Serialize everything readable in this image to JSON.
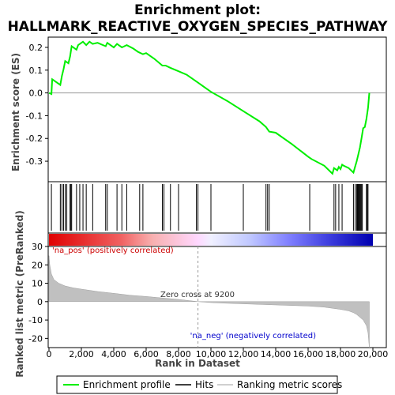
{
  "chart_data": {
    "type": "line",
    "title_line1": "Enrichment plot:",
    "title_line2": "HALLMARK_REACTIVE_OXYGEN_SPECIES_PATHWAY",
    "top_panel": {
      "ylabel": "Enrichment score (ES)",
      "ylim": [
        -0.39,
        0.245
      ],
      "yticks": [
        0.2,
        0.1,
        0.0,
        -0.1,
        -0.2,
        -0.3
      ],
      "ytick_labels": [
        "0.2",
        "0.1",
        "0.0",
        "-0.1",
        "-0.2",
        "-0.3"
      ],
      "series": [
        {
          "name": "Enrichment profile",
          "color": "#00ee00",
          "x": [
            0,
            150,
            200,
            700,
            800,
            900,
            1000,
            1200,
            1300,
            1400,
            1700,
            1800,
            2100,
            2300,
            2500,
            2700,
            3000,
            3500,
            3600,
            4000,
            4200,
            4500,
            4800,
            5200,
            5500,
            5800,
            6000,
            6500,
            7000,
            7200,
            7500,
            8000,
            8500,
            9200,
            10000,
            11000,
            12000,
            13000,
            13400,
            13600,
            14000,
            15000,
            16000,
            16200,
            17000,
            17500,
            17600,
            17800,
            17900,
            18000,
            18100,
            18200,
            18500,
            18800,
            18900,
            19000,
            19100,
            19200,
            19300,
            19400,
            19500,
            19600,
            19700,
            19780
          ],
          "values": [
            0.0,
            -0.005,
            0.06,
            0.035,
            0.075,
            0.105,
            0.14,
            0.13,
            0.16,
            0.205,
            0.19,
            0.21,
            0.225,
            0.21,
            0.225,
            0.215,
            0.22,
            0.205,
            0.22,
            0.2,
            0.215,
            0.2,
            0.21,
            0.195,
            0.18,
            0.17,
            0.175,
            0.15,
            0.12,
            0.12,
            0.11,
            0.095,
            0.08,
            0.045,
            0.005,
            -0.035,
            -0.08,
            -0.125,
            -0.15,
            -0.17,
            -0.175,
            -0.225,
            -0.28,
            -0.29,
            -0.32,
            -0.355,
            -0.33,
            -0.34,
            -0.325,
            -0.335,
            -0.315,
            -0.32,
            -0.33,
            -0.35,
            -0.325,
            -0.3,
            -0.27,
            -0.24,
            -0.2,
            -0.155,
            -0.15,
            -0.115,
            -0.065,
            0.0
          ]
        }
      ]
    },
    "hits": [
      150,
      700,
      800,
      900,
      1000,
      1100,
      1300,
      1350,
      1400,
      1700,
      1900,
      2100,
      2300,
      2700,
      3500,
      3600,
      4200,
      4500,
      4800,
      5600,
      5800,
      7000,
      7100,
      7500,
      8000,
      9100,
      9200,
      10000,
      12000,
      13400,
      13500,
      13600,
      16100,
      17600,
      17700,
      17900,
      18100,
      18800,
      18900,
      19000,
      19050,
      19100,
      19150,
      19200,
      19250,
      19300,
      19350,
      19600,
      19650,
      19700
    ],
    "ranked_panel": {
      "ylabel": "Ranked list metric (PreRanked)",
      "xlabel": "Rank in Dataset",
      "ylim": [
        -25,
        30
      ],
      "yticks": [
        30,
        20,
        10,
        0,
        -10,
        -20
      ],
      "ytick_labels": [
        "30",
        "20",
        "10",
        "0",
        "-10",
        "-20"
      ],
      "xlim": [
        0,
        20000
      ],
      "xticks": [
        0,
        2000,
        4000,
        6000,
        8000,
        10000,
        12000,
        14000,
        16000,
        18000,
        20000
      ],
      "xtick_labels": [
        "0",
        "2,000",
        "4,000",
        "6,000",
        "8,000",
        "10,000",
        "12,000",
        "14,000",
        "16,000",
        "18,000",
        "20,000"
      ],
      "metric_x": [
        0,
        50,
        150,
        300,
        600,
        1000,
        1500,
        2000,
        3000,
        4000,
        5000,
        6000,
        7000,
        8000,
        9200,
        10000,
        11000,
        12000,
        13000,
        14000,
        15000,
        16000,
        17000,
        17500,
        18000,
        18500,
        18800,
        19000,
        19200,
        19400,
        19600,
        19700,
        19780
      ],
      "metric_values": [
        25,
        20,
        15,
        12,
        10,
        8.5,
        7.5,
        6.8,
        5.5,
        4.5,
        3.5,
        2.8,
        2.0,
        1.2,
        0.0,
        -0.5,
        -0.9,
        -1.2,
        -1.5,
        -1.8,
        -2.1,
        -2.4,
        -3.0,
        -3.6,
        -4.2,
        -5.0,
        -6.0,
        -7.0,
        -8.5,
        -10,
        -13,
        -17,
        -25
      ],
      "zero_cross_label": "Zero cross at 9200",
      "zero_cross_rank": 9200,
      "pos_label": "'na_pos' (positively correlated)",
      "neg_label": "'na_neg' (negatively correlated)"
    },
    "legend": {
      "items": [
        {
          "label": "Enrichment profile",
          "color": "#00ee00"
        },
        {
          "label": "Hits",
          "color": "#000000"
        },
        {
          "label": "Ranking metric scores",
          "color": "#c0c0c0"
        }
      ],
      "placement": "bottom"
    },
    "colors": {
      "pos_label": "#cc0000",
      "neg_label": "#0000cc",
      "metric_fill": "#c0c0c0"
    }
  }
}
